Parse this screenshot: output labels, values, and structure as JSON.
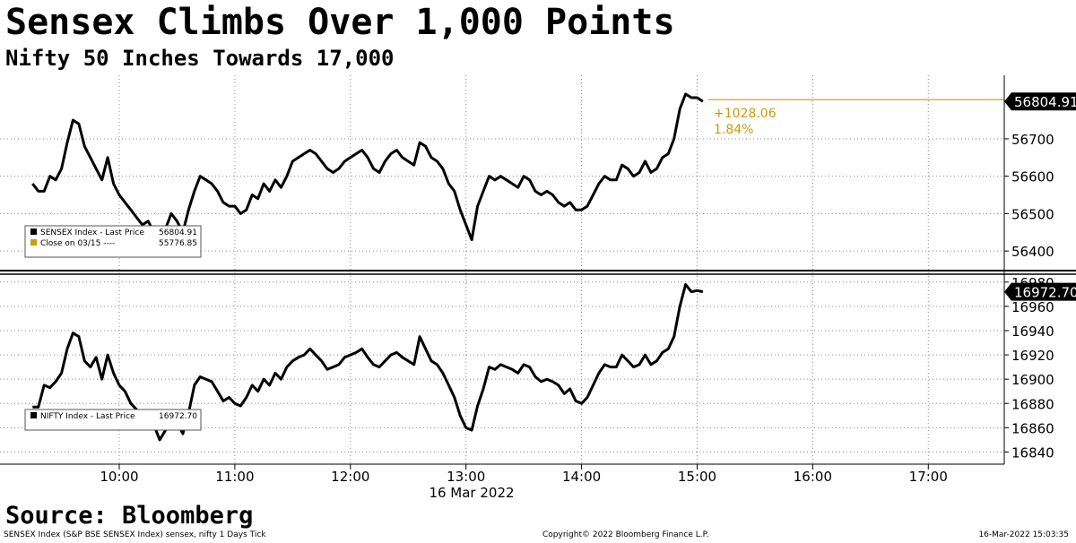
{
  "title": "Sensex Climbs Over 1,000 Points",
  "subtitle": "Nifty 50 Inches Towards 17,000",
  "source": "Source: Bloomberg",
  "footer": {
    "left": "SENSEX Index (S&P BSE SENSEX Index) sensex, nifty 1 Days  Tick",
    "center": "Copyright© 2022 Bloomberg Finance L.P.",
    "right": "16-Mar-2022 15:03:35"
  },
  "colors": {
    "line": "#000000",
    "accent": "#d4960a",
    "grid": "#888888"
  },
  "chart_data": [
    {
      "type": "line",
      "x_unit": "time",
      "x_date_label": "16 Mar 2022",
      "x_ticks": [
        "10:00",
        "11:00",
        "12:00",
        "13:00",
        "14:00",
        "15:00",
        "16:00",
        "17:00"
      ],
      "xlim": [
        "09:15",
        "17:30"
      ],
      "y_ticks": [
        56400,
        56500,
        56600,
        56700
      ],
      "ylim": [
        56350,
        56870
      ],
      "last_value_label": "56804.91",
      "change_label": "+1028.06",
      "change_pct_label": "1.84%",
      "reference_line": 56804.91,
      "legend": [
        {
          "name": "SENSEX Index - Last Price",
          "value": "56804.91",
          "color": "#000000"
        },
        {
          "name": "Close on 03/15 ----",
          "value": "55776.85",
          "color": "#d4960a"
        }
      ],
      "series": [
        {
          "name": "SENSEX Index",
          "x": [
            "09:15",
            "09:18",
            "09:21",
            "09:24",
            "09:27",
            "09:30",
            "09:33",
            "09:36",
            "09:39",
            "09:42",
            "09:45",
            "09:48",
            "09:51",
            "09:54",
            "09:57",
            "10:00",
            "10:03",
            "10:06",
            "10:09",
            "10:12",
            "10:15",
            "10:18",
            "10:21",
            "10:24",
            "10:27",
            "10:30",
            "10:33",
            "10:36",
            "10:39",
            "10:42",
            "10:45",
            "10:48",
            "10:51",
            "10:54",
            "10:57",
            "11:00",
            "11:03",
            "11:06",
            "11:09",
            "11:12",
            "11:15",
            "11:18",
            "11:21",
            "11:24",
            "11:27",
            "11:30",
            "11:33",
            "11:36",
            "11:39",
            "11:42",
            "11:45",
            "11:48",
            "11:51",
            "11:54",
            "11:57",
            "12:00",
            "12:03",
            "12:06",
            "12:09",
            "12:12",
            "12:15",
            "12:18",
            "12:21",
            "12:24",
            "12:27",
            "12:30",
            "12:33",
            "12:36",
            "12:39",
            "12:42",
            "12:45",
            "12:48",
            "12:51",
            "12:54",
            "12:57",
            "13:00",
            "13:03",
            "13:06",
            "13:09",
            "13:12",
            "13:15",
            "13:18",
            "13:21",
            "13:24",
            "13:27",
            "13:30",
            "13:33",
            "13:36",
            "13:39",
            "13:42",
            "13:45",
            "13:48",
            "13:51",
            "13:54",
            "13:57",
            "14:00",
            "14:03",
            "14:06",
            "14:09",
            "14:12",
            "14:15",
            "14:18",
            "14:21",
            "14:24",
            "14:27",
            "14:30",
            "14:33",
            "14:36",
            "14:39",
            "14:42",
            "14:45",
            "14:48",
            "14:51",
            "14:54",
            "14:57",
            "15:00",
            "15:03"
          ],
          "values": [
            56580,
            56560,
            56560,
            56600,
            56590,
            56620,
            56690,
            56750,
            56740,
            56680,
            56650,
            56620,
            56590,
            56650,
            56580,
            56550,
            56530,
            56510,
            56490,
            56470,
            56480,
            56450,
            56430,
            56460,
            56500,
            56480,
            56450,
            56510,
            56560,
            56600,
            56590,
            56580,
            56560,
            56530,
            56520,
            56520,
            56500,
            56510,
            56550,
            56540,
            56580,
            56560,
            56590,
            56570,
            56600,
            56640,
            56650,
            56660,
            56670,
            56660,
            56640,
            56620,
            56610,
            56620,
            56640,
            56650,
            56660,
            56670,
            56650,
            56620,
            56610,
            56640,
            56660,
            56670,
            56650,
            56640,
            56630,
            56690,
            56680,
            56650,
            56640,
            56620,
            56580,
            56560,
            56510,
            56470,
            56430,
            56520,
            56560,
            56600,
            56590,
            56600,
            56590,
            56580,
            56570,
            56600,
            56590,
            56560,
            56550,
            56560,
            56550,
            56530,
            56520,
            56530,
            56510,
            56510,
            56520,
            56550,
            56580,
            56600,
            56590,
            56590,
            56630,
            56620,
            56600,
            56610,
            56640,
            56610,
            56620,
            56650,
            56660,
            56700,
            56780,
            56820,
            56810,
            56810,
            56800
          ]
        }
      ]
    },
    {
      "type": "line",
      "x_unit": "time",
      "x_ticks": [
        "10:00",
        "11:00",
        "12:00",
        "13:00",
        "14:00",
        "15:00",
        "16:00",
        "17:00"
      ],
      "xlim": [
        "09:15",
        "17:30"
      ],
      "y_ticks": [
        16840,
        16860,
        16880,
        16900,
        16920,
        16940,
        16960,
        16980
      ],
      "ylim": [
        16830,
        16985
      ],
      "last_value_label": "16972.70",
      "legend": [
        {
          "name": "NIFTY Index - Last Price",
          "value": "16972.70",
          "color": "#000000"
        }
      ],
      "series": [
        {
          "name": "NIFTY Index",
          "x": [
            "09:15",
            "09:18",
            "09:21",
            "09:24",
            "09:27",
            "09:30",
            "09:33",
            "09:36",
            "09:39",
            "09:42",
            "09:45",
            "09:48",
            "09:51",
            "09:54",
            "09:57",
            "10:00",
            "10:03",
            "10:06",
            "10:09",
            "10:12",
            "10:15",
            "10:18",
            "10:21",
            "10:24",
            "10:27",
            "10:30",
            "10:33",
            "10:36",
            "10:39",
            "10:42",
            "10:45",
            "10:48",
            "10:51",
            "10:54",
            "10:57",
            "11:00",
            "11:03",
            "11:06",
            "11:09",
            "11:12",
            "11:15",
            "11:18",
            "11:21",
            "11:24",
            "11:27",
            "11:30",
            "11:33",
            "11:36",
            "11:39",
            "11:42",
            "11:45",
            "11:48",
            "11:51",
            "11:54",
            "11:57",
            "12:00",
            "12:03",
            "12:06",
            "12:09",
            "12:12",
            "12:15",
            "12:18",
            "12:21",
            "12:24",
            "12:27",
            "12:30",
            "12:33",
            "12:36",
            "12:39",
            "12:42",
            "12:45",
            "12:48",
            "12:51",
            "12:54",
            "12:57",
            "13:00",
            "13:03",
            "13:06",
            "13:09",
            "13:12",
            "13:15",
            "13:18",
            "13:21",
            "13:24",
            "13:27",
            "13:30",
            "13:33",
            "13:36",
            "13:39",
            "13:42",
            "13:45",
            "13:48",
            "13:51",
            "13:54",
            "13:57",
            "14:00",
            "14:03",
            "14:06",
            "14:09",
            "14:12",
            "14:15",
            "14:18",
            "14:21",
            "14:24",
            "14:27",
            "14:30",
            "14:33",
            "14:36",
            "14:39",
            "14:42",
            "14:45",
            "14:48",
            "14:51",
            "14:54",
            "14:57",
            "15:00",
            "15:03"
          ],
          "values": [
            16877,
            16877,
            16895,
            16893,
            16898,
            16905,
            16925,
            16938,
            16935,
            16915,
            16910,
            16918,
            16900,
            16920,
            16905,
            16895,
            16890,
            16880,
            16875,
            16862,
            16868,
            16862,
            16850,
            16858,
            16870,
            16865,
            16855,
            16872,
            16895,
            16902,
            16900,
            16898,
            16890,
            16882,
            16885,
            16880,
            16878,
            16885,
            16895,
            16890,
            16900,
            16895,
            16905,
            16900,
            16910,
            16915,
            16918,
            16920,
            16925,
            16920,
            16915,
            16908,
            16910,
            16912,
            16918,
            16920,
            16922,
            16925,
            16918,
            16912,
            16910,
            16915,
            16920,
            16922,
            16918,
            16915,
            16912,
            16935,
            16925,
            16915,
            16912,
            16905,
            16895,
            16885,
            16870,
            16860,
            16858,
            16878,
            16892,
            16910,
            16908,
            16912,
            16910,
            16908,
            16905,
            16912,
            16910,
            16902,
            16898,
            16900,
            16898,
            16895,
            16888,
            16892,
            16882,
            16880,
            16885,
            16895,
            16905,
            16912,
            16910,
            16910,
            16920,
            16915,
            16910,
            16912,
            16920,
            16912,
            16915,
            16922,
            16925,
            16935,
            16960,
            16978,
            16972,
            16973,
            16972
          ]
        }
      ]
    }
  ]
}
